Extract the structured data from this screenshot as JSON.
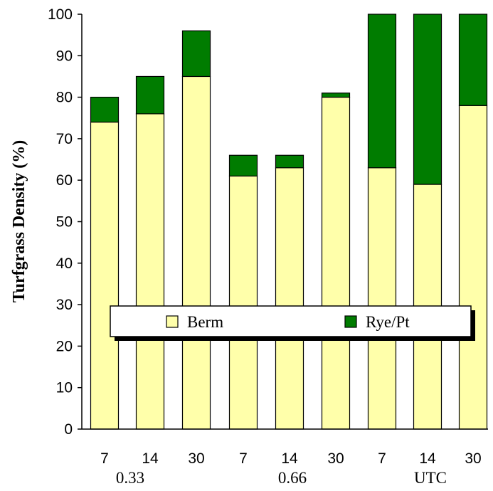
{
  "chart_data": {
    "type": "bar",
    "stacked": true,
    "ylabel": "Turfgrass Density (%)",
    "ylim": [
      0,
      100
    ],
    "yticks": [
      0,
      10,
      20,
      30,
      40,
      50,
      60,
      70,
      80,
      90,
      100
    ],
    "categories": [
      "7",
      "14",
      "30",
      "7",
      "14",
      "30",
      "7",
      "14",
      "30"
    ],
    "groups": [
      {
        "label": "0.33",
        "categories": [
          "7",
          "14",
          "30"
        ]
      },
      {
        "label": "0.66",
        "categories": [
          "7",
          "14",
          "30"
        ]
      },
      {
        "label": "UTC",
        "categories": [
          "7",
          "14",
          "30"
        ]
      }
    ],
    "series": [
      {
        "name": "Berm",
        "color": "#ffffaa",
        "values": [
          74,
          76,
          85,
          61,
          63,
          80,
          63,
          59,
          78
        ]
      },
      {
        "name": "Rye/Pt",
        "color": "#007c00",
        "values": [
          6,
          9,
          11,
          5,
          3,
          1,
          37,
          41,
          22
        ]
      }
    ],
    "legend": "inside-center",
    "grid": false
  }
}
